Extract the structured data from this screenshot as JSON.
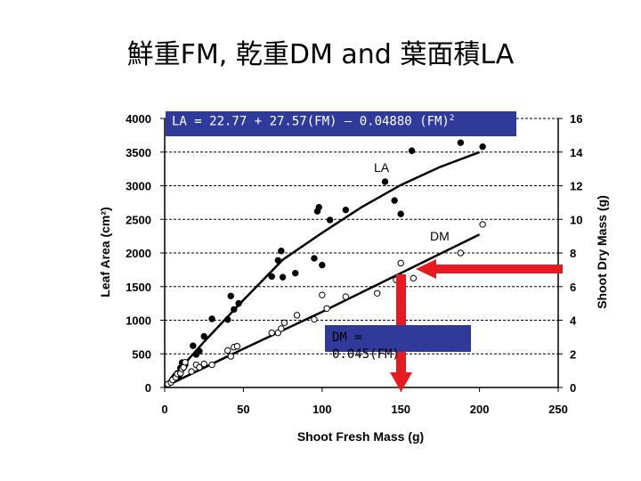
{
  "title": "鮮重FM, 乾重DM and 葉面積LA",
  "chart_data": {
    "type": "scatter",
    "xlabel": "Shoot Fresh Mass (g)",
    "ylabel": "Leaf Area (cm²)",
    "y2label": "Shoot Dry Mass (g)",
    "xlim": [
      0,
      250
    ],
    "ylim": [
      0,
      4000
    ],
    "y2lim": [
      0,
      16
    ],
    "x_ticks": [
      "0",
      "50",
      "100",
      "150",
      "200",
      "250"
    ],
    "y_ticks": [
      "0",
      "500",
      "1000",
      "1500",
      "2000",
      "2500",
      "3000",
      "3500",
      "4000"
    ],
    "y2_ticks": [
      "0",
      "2",
      "4",
      "6",
      "8",
      "10",
      "12",
      "14",
      "16"
    ],
    "grid": true,
    "series": [
      {
        "name": "LA",
        "axis": "left",
        "marker": "filled",
        "points": [
          [
            2,
            50
          ],
          [
            4,
            80
          ],
          [
            5,
            120
          ],
          [
            6,
            150
          ],
          [
            7,
            180
          ],
          [
            8,
            210
          ],
          [
            9,
            170
          ],
          [
            10,
            230
          ],
          [
            10,
            290
          ],
          [
            11,
            370
          ],
          [
            12,
            300
          ],
          [
            13,
            340
          ],
          [
            18,
            620
          ],
          [
            20,
            490
          ],
          [
            22,
            540
          ],
          [
            25,
            760
          ],
          [
            30,
            1020
          ],
          [
            40,
            1010
          ],
          [
            42,
            1360
          ],
          [
            44,
            1160
          ],
          [
            47,
            1250
          ],
          [
            68,
            1650
          ],
          [
            72,
            1890
          ],
          [
            74,
            2030
          ],
          [
            75,
            1640
          ],
          [
            83,
            1700
          ],
          [
            95,
            1920
          ],
          [
            97,
            2620
          ],
          [
            98,
            2680
          ],
          [
            100,
            1820
          ],
          [
            105,
            2490
          ],
          [
            115,
            2640
          ],
          [
            140,
            3060
          ],
          [
            146,
            2780
          ],
          [
            150,
            2580
          ],
          [
            157,
            3520
          ],
          [
            188,
            3640
          ],
          [
            202,
            3580
          ]
        ],
        "fit": [
          [
            0,
            20
          ],
          [
            25,
            680
          ],
          [
            50,
            1300
          ],
          [
            75,
            1900
          ],
          [
            100,
            2300
          ],
          [
            125,
            2680
          ],
          [
            150,
            3010
          ],
          [
            175,
            3280
          ],
          [
            200,
            3500
          ]
        ]
      },
      {
        "name": "DM",
        "axis": "right",
        "marker": "open",
        "points": [
          [
            2,
            0.2
          ],
          [
            4,
            0.3
          ],
          [
            5,
            0.45
          ],
          [
            7,
            0.6
          ],
          [
            8,
            0.8
          ],
          [
            10,
            0.85
          ],
          [
            11,
            1.1
          ],
          [
            12,
            1.2
          ],
          [
            13,
            1.5
          ],
          [
            17,
            0.95
          ],
          [
            20,
            1.35
          ],
          [
            22,
            1.2
          ],
          [
            25,
            1.4
          ],
          [
            30,
            1.35
          ],
          [
            40,
            2.2
          ],
          [
            42,
            1.85
          ],
          [
            44,
            2.4
          ],
          [
            46,
            2.45
          ],
          [
            68,
            3.25
          ],
          [
            72,
            3.25
          ],
          [
            74,
            3.5
          ],
          [
            76,
            3.85
          ],
          [
            84,
            4.3
          ],
          [
            95,
            4.05
          ],
          [
            100,
            5.5
          ],
          [
            103,
            4.7
          ],
          [
            115,
            5.4
          ],
          [
            135,
            5.6
          ],
          [
            147,
            6.4
          ],
          [
            150,
            7.4
          ],
          [
            158,
            6.5
          ],
          [
            188,
            8.0
          ],
          [
            202,
            9.7
          ]
        ],
        "fit": [
          [
            0,
            0.05
          ],
          [
            50,
            2.3
          ],
          [
            100,
            4.5
          ],
          [
            150,
            6.8
          ],
          [
            200,
            9.1
          ]
        ]
      }
    ],
    "annotations": [
      {
        "text": "LA = 22.77 + 27.57(FM) – 0.04880 (FM)",
        "superscript": "2"
      },
      {
        "text": "DM = 0.045(FM)"
      }
    ],
    "series_labels": {
      "LA": "LA",
      "DM": "DM"
    }
  },
  "colors": {
    "equation_box": "#2f3a9a",
    "arrow": "#e8191f",
    "gridline": "#000000",
    "ink": "#000000"
  }
}
